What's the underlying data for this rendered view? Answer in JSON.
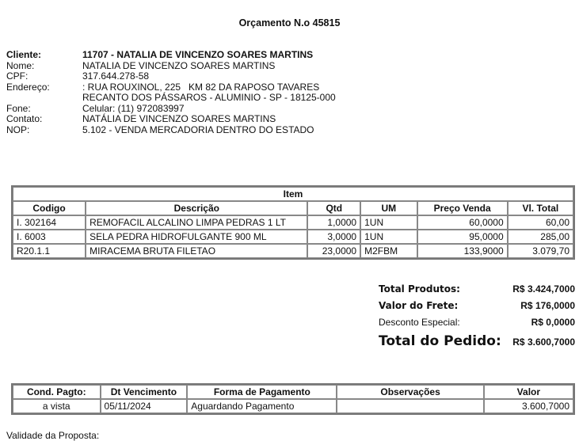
{
  "title": "Orçamento N.o 45815",
  "client": [
    {
      "label": "Cliente:",
      "value": "11707 - NATALIA DE VINCENZO SOARES MARTINS",
      "bold": true
    },
    {
      "label": "Nome:",
      "value": "NATALIA DE VINCENZO SOARES MARTINS"
    },
    {
      "label": "CPF:",
      "value": "317.644.278-58"
    },
    {
      "label": "Endereço:",
      "value": ": RUA ROUXINOL, 225   KM 82 DA RAPOSO TAVARES"
    },
    {
      "label": "",
      "value": "RECANTO DOS PÁSSAROS - ALUMINIO - SP - 18125-000"
    },
    {
      "label": "Fone:",
      "value": "Celular: (11) 972083997"
    },
    {
      "label": "Contato:",
      "value": "NATÁLIA DE VINCENZO SOARES MARTINS"
    },
    {
      "label": "NOP:",
      "value": "5.102 - VENDA MERCADORIA DENTRO DO ESTADO"
    }
  ],
  "items": {
    "caption": "Item",
    "headers": [
      "Codigo",
      "Descrição",
      "Qtd",
      "UM",
      "Preço Venda",
      "Vl. Total"
    ],
    "rows": [
      [
        "I. 302164",
        "REMOFACIL ALCALINO LIMPA PEDRAS 1 LT",
        "1,0000",
        "1UN",
        "60,0000",
        "60,00"
      ],
      [
        "I. 6003",
        "SELA PEDRA HIDROFULGANTE 900 ML",
        "3,0000",
        "1UN",
        "95,0000",
        "285,00"
      ],
      [
        "R20.1.1",
        "MIRACEMA BRUTA FILETAO",
        "23,0000",
        "M2FBM",
        "133,9000",
        "3.079,70"
      ]
    ]
  },
  "totals": {
    "produtos_label": "Total Produtos:",
    "produtos": "R$ 3.424,7000",
    "frete_label": "Valor do Frete:",
    "frete": "R$ 176,0000",
    "desconto_label": "Desconto Especial:",
    "desconto": "R$ 0,0000",
    "pedido_label": "Total do Pedido:",
    "pedido": "R$ 3.600,7000"
  },
  "payment": {
    "headers": [
      "Cond. Pagto:",
      "Dt Vencimento",
      "Forma de Pagamento",
      "Observações",
      "Valor"
    ],
    "row": [
      "a vista",
      "05/11/2024",
      "Aguardando Pagamento",
      "",
      "3.600,7000"
    ]
  },
  "validity_label": "Validade da Proposta:"
}
